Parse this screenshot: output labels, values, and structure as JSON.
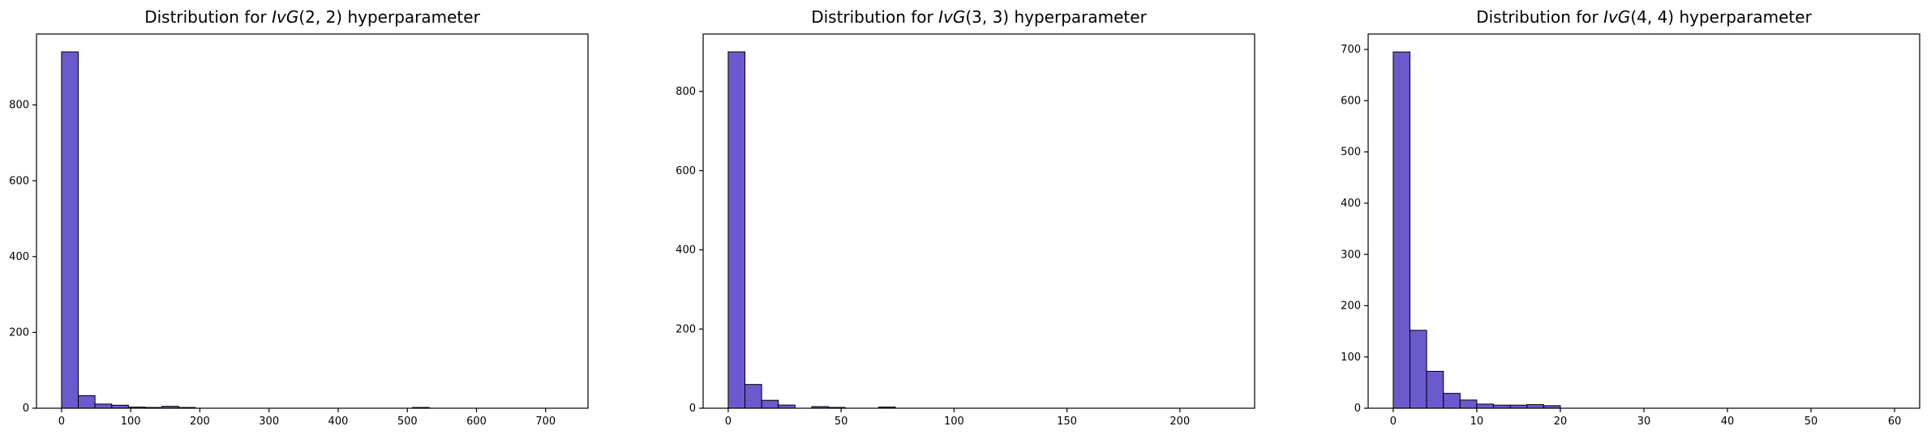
{
  "figure": {
    "background": "#ffffff",
    "bar_fill": "#6A5ACD",
    "bar_edge": "#000000",
    "spine_color": "#000000",
    "text_color": "#000000"
  },
  "chart_data": [
    {
      "type": "bar",
      "subtype": "histogram",
      "title": "Distribution for IvG(2, 2) hyperparameter",
      "title_segments": [
        {
          "text": "Distribution for ",
          "style": "normal"
        },
        {
          "text": "IvG",
          "style": "italic"
        },
        {
          "text": "(2, 2)",
          "style": "normal"
        },
        {
          "text": " hyperparameter",
          "style": "normal"
        }
      ],
      "bin_start": 0,
      "bin_width": 24.17,
      "counts": [
        940,
        33,
        11,
        8,
        3,
        2,
        5,
        2,
        0,
        0,
        0,
        0,
        0,
        0,
        0,
        0,
        0,
        0,
        0,
        0,
        0,
        2
      ],
      "xlim": [
        -36.25,
        761.25
      ],
      "ylim": [
        0,
        987
      ],
      "xticks": [
        0,
        100,
        200,
        300,
        400,
        500,
        600,
        700
      ],
      "yticks": [
        0,
        200,
        400,
        600,
        800
      ],
      "grid": false,
      "legend": null
    },
    {
      "type": "bar",
      "subtype": "histogram",
      "title": "Distribution for IvG(3, 3) hyperparameter",
      "title_segments": [
        {
          "text": "Distribution for ",
          "style": "normal"
        },
        {
          "text": "IvG",
          "style": "italic"
        },
        {
          "text": "(3, 3)",
          "style": "normal"
        },
        {
          "text": " hyperparameter",
          "style": "normal"
        }
      ],
      "bin_start": 0,
      "bin_width": 7.4,
      "counts": [
        900,
        60,
        20,
        8,
        0,
        4,
        2,
        0,
        0,
        3
      ],
      "xlim": [
        -11.1,
        233.1
      ],
      "ylim": [
        0,
        945
      ],
      "xticks": [
        0,
        50,
        100,
        150,
        200
      ],
      "yticks": [
        0,
        200,
        400,
        600,
        800
      ],
      "grid": false,
      "legend": null
    },
    {
      "type": "bar",
      "subtype": "histogram",
      "title": "Distribution for IvG(4, 4) hyperparameter",
      "title_segments": [
        {
          "text": "Distribution for ",
          "style": "normal"
        },
        {
          "text": "IvG",
          "style": "italic"
        },
        {
          "text": "(4, 4)",
          "style": "normal"
        },
        {
          "text": " hyperparameter",
          "style": "normal"
        }
      ],
      "bin_start": 0,
      "bin_width": 2,
      "counts": [
        695,
        152,
        72,
        29,
        16,
        8,
        6,
        6,
        7,
        5
      ],
      "xlim": [
        -3,
        63
      ],
      "ylim": [
        0,
        730
      ],
      "xticks": [
        0,
        10,
        20,
        30,
        40,
        50,
        60
      ],
      "yticks": [
        0,
        100,
        200,
        300,
        400,
        500,
        600,
        700
      ],
      "grid": false,
      "legend": null
    }
  ]
}
